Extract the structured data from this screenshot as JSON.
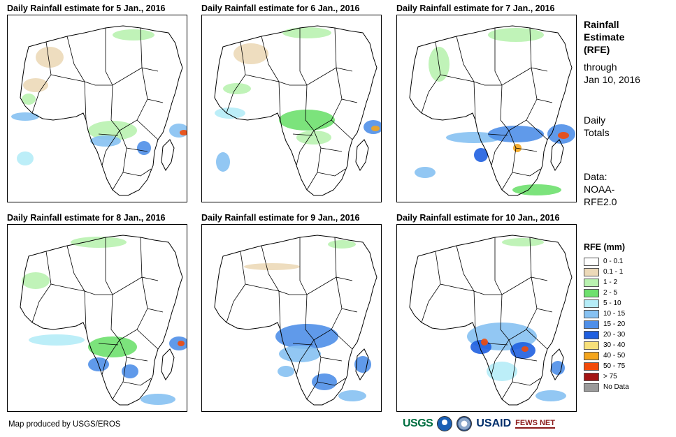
{
  "panels": [
    {
      "title": "Daily Rainfall estimate for 5 Jan., 2016"
    },
    {
      "title": "Daily Rainfall estimate for 6 Jan., 2016"
    },
    {
      "title": "Daily Rainfall estimate for 7 Jan., 2016"
    },
    {
      "title": "Daily Rainfall estimate for 8 Jan., 2016"
    },
    {
      "title": "Daily Rainfall estimate for 9 Jan., 2016"
    },
    {
      "title": "Daily Rainfall estimate for 10 Jan., 2016"
    }
  ],
  "sidebar": {
    "title_line1": "Rainfall",
    "title_line2": "Estimate",
    "title_line3": "(RFE)",
    "through_line1": "through",
    "through_line2": "Jan 10, 2016",
    "daily_line1": "Daily",
    "daily_line2": "Totals",
    "data_line1": "Data:",
    "data_line2": "NOAA-",
    "data_line3": "RFE2.0"
  },
  "legend": {
    "title": "RFE (mm)",
    "items": [
      {
        "label": "0 - 0.1",
        "color": "#ffffff"
      },
      {
        "label": "0.1 - 1",
        "color": "#ecd9b8"
      },
      {
        "label": "1 - 2",
        "color": "#b9f2b0"
      },
      {
        "label": "2 - 5",
        "color": "#6ee06e"
      },
      {
        "label": "5 - 10",
        "color": "#b5ecf7"
      },
      {
        "label": "10 - 15",
        "color": "#86c1f2"
      },
      {
        "label": "15 - 20",
        "color": "#4f8fe8"
      },
      {
        "label": "20 - 30",
        "color": "#1f5fe0"
      },
      {
        "label": "30 - 40",
        "color": "#f7e07a"
      },
      {
        "label": "40 - 50",
        "color": "#f4a51c"
      },
      {
        "label": "50 - 75",
        "color": "#f24a0a"
      },
      {
        "label": "> 75",
        "color": "#a41414"
      },
      {
        "label": "No Data",
        "color": "#9a9a9a"
      }
    ]
  },
  "footer": {
    "credit": "Map produced by USGS/EROS",
    "logo_usgs": "USGS",
    "logo_usaid": "USAID",
    "logo_fews": "FEWS NET"
  }
}
